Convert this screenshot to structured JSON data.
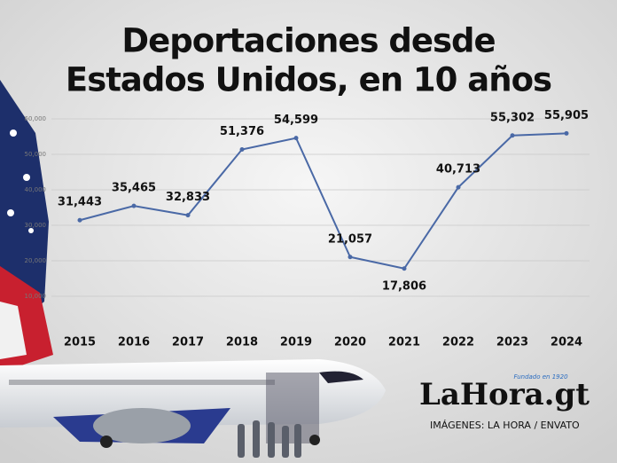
{
  "chart_data": {
    "type": "line",
    "title": [
      "Deportaciones desde",
      "Estados Unidos, en 10 años"
    ],
    "categories": [
      "2015",
      "2016",
      "2017",
      "2018",
      "2019",
      "2020",
      "2021",
      "2022",
      "2023",
      "2024"
    ],
    "values": [
      31443,
      35465,
      32833,
      51376,
      54599,
      21057,
      17806,
      40713,
      55302,
      55905
    ],
    "value_labels": [
      "31,443",
      "35,465",
      "32,833",
      "51,376",
      "54,599",
      "21,057",
      "17,806",
      "40,713",
      "55,302",
      "55,905"
    ],
    "color": "#4a69a6",
    "ylim": [
      0,
      60000
    ],
    "yticks": [
      {
        "value": 10000,
        "label": "10,000"
      },
      {
        "value": 20000,
        "label": "20,000"
      },
      {
        "value": 30000,
        "label": "30,000"
      },
      {
        "value": 40000,
        "label": "40,000"
      },
      {
        "value": 50000,
        "label": "50,000"
      },
      {
        "value": 60000,
        "label": "60,000"
      }
    ],
    "grid": true
  },
  "branding": {
    "logo": "LaHora.gt",
    "tagline": "Fundado en 1920",
    "credit": "IMÁGENES: LA HORA / ENVATO"
  }
}
